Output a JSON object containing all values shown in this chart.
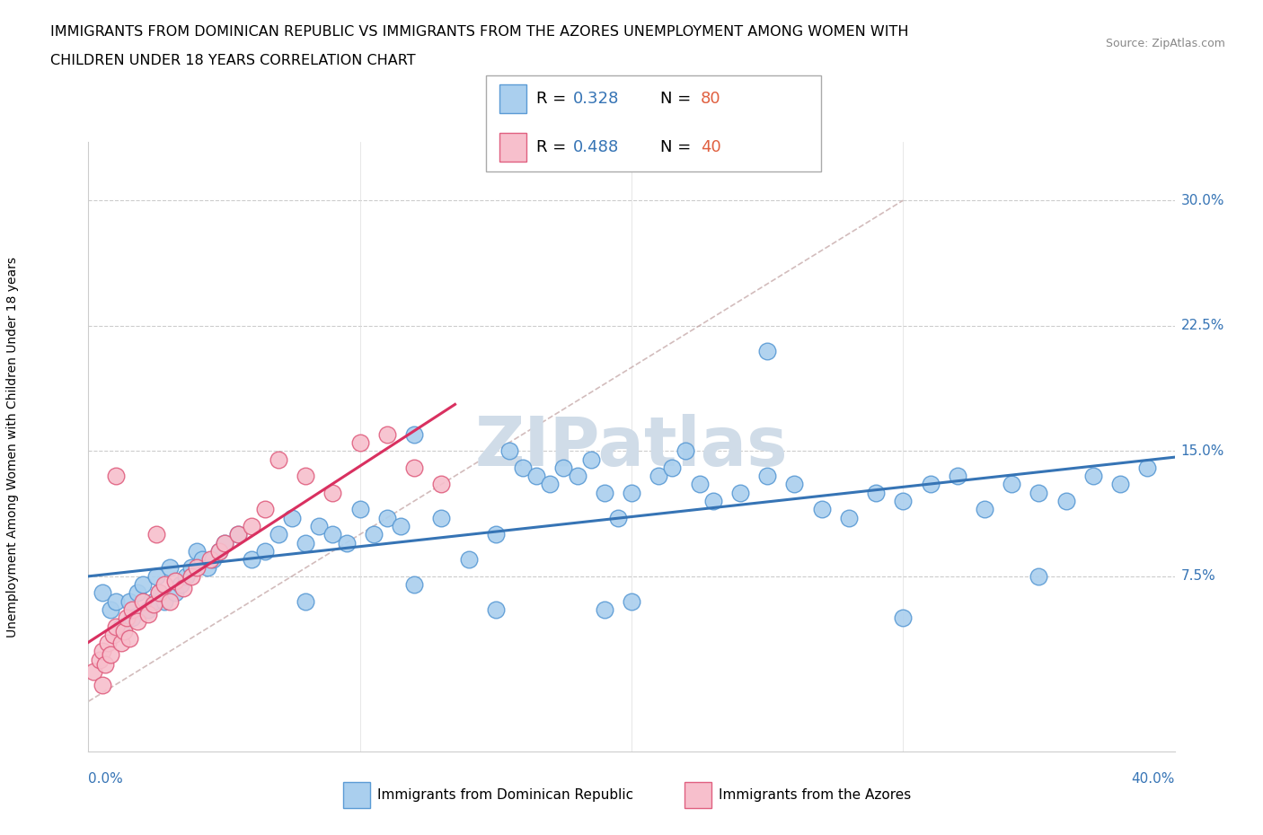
{
  "title_line1": "IMMIGRANTS FROM DOMINICAN REPUBLIC VS IMMIGRANTS FROM THE AZORES UNEMPLOYMENT AMONG WOMEN WITH",
  "title_line2": "CHILDREN UNDER 18 YEARS CORRELATION CHART",
  "source": "Source: ZipAtlas.com",
  "ylabel": "Unemployment Among Women with Children Under 18 years",
  "xlim": [
    0.0,
    0.4
  ],
  "ylim": [
    -0.03,
    0.335
  ],
  "ytick_vals": [
    0.0,
    0.075,
    0.15,
    0.225,
    0.3
  ],
  "ytick_labels": [
    "",
    "7.5%",
    "15.0%",
    "22.5%",
    "30.0%"
  ],
  "xtick_vals": [
    0.0,
    0.1,
    0.2,
    0.3,
    0.4
  ],
  "xtick_labels": [
    "0.0%",
    "",
    "",
    "",
    "40.0%"
  ],
  "blue_color": "#aacfee",
  "blue_edge_color": "#5b9bd5",
  "pink_color": "#f7bfcc",
  "pink_edge_color": "#e06080",
  "blue_line_color": "#3674b5",
  "pink_line_color": "#d93060",
  "diag_line_color": "#c0a0a0",
  "watermark_color": "#d0dce8",
  "legend_text_color": "#3674b5",
  "legend_N_color": "#e06040",
  "blue_label": "Immigrants from Dominican Republic",
  "pink_label": "Immigrants from the Azores",
  "R1": "0.328",
  "N1": "80",
  "R2": "0.488",
  "N2": "40",
  "blue_x": [
    0.005,
    0.008,
    0.01,
    0.012,
    0.015,
    0.016,
    0.018,
    0.02,
    0.022,
    0.024,
    0.025,
    0.026,
    0.028,
    0.03,
    0.032,
    0.034,
    0.036,
    0.038,
    0.04,
    0.042,
    0.044,
    0.046,
    0.048,
    0.05,
    0.055,
    0.06,
    0.065,
    0.07,
    0.075,
    0.08,
    0.085,
    0.09,
    0.095,
    0.1,
    0.105,
    0.11,
    0.115,
    0.12,
    0.13,
    0.14,
    0.15,
    0.155,
    0.16,
    0.165,
    0.17,
    0.175,
    0.18,
    0.185,
    0.19,
    0.195,
    0.2,
    0.21,
    0.215,
    0.22,
    0.225,
    0.23,
    0.24,
    0.25,
    0.26,
    0.27,
    0.28,
    0.29,
    0.3,
    0.31,
    0.32,
    0.33,
    0.34,
    0.35,
    0.36,
    0.37,
    0.38,
    0.39,
    0.15,
    0.2,
    0.25,
    0.3,
    0.35,
    0.19,
    0.12,
    0.08
  ],
  "blue_y": [
    0.065,
    0.055,
    0.06,
    0.045,
    0.06,
    0.05,
    0.065,
    0.07,
    0.055,
    0.06,
    0.075,
    0.065,
    0.06,
    0.08,
    0.065,
    0.07,
    0.075,
    0.08,
    0.09,
    0.085,
    0.08,
    0.085,
    0.09,
    0.095,
    0.1,
    0.085,
    0.09,
    0.1,
    0.11,
    0.095,
    0.105,
    0.1,
    0.095,
    0.115,
    0.1,
    0.11,
    0.105,
    0.16,
    0.11,
    0.085,
    0.1,
    0.15,
    0.14,
    0.135,
    0.13,
    0.14,
    0.135,
    0.145,
    0.125,
    0.11,
    0.125,
    0.135,
    0.14,
    0.15,
    0.13,
    0.12,
    0.125,
    0.135,
    0.13,
    0.115,
    0.11,
    0.125,
    0.12,
    0.13,
    0.135,
    0.115,
    0.13,
    0.125,
    0.12,
    0.135,
    0.13,
    0.14,
    0.055,
    0.06,
    0.21,
    0.05,
    0.075,
    0.055,
    0.07,
    0.06
  ],
  "pink_x": [
    0.002,
    0.004,
    0.005,
    0.006,
    0.007,
    0.008,
    0.009,
    0.01,
    0.012,
    0.013,
    0.014,
    0.015,
    0.016,
    0.018,
    0.02,
    0.022,
    0.024,
    0.026,
    0.028,
    0.03,
    0.032,
    0.035,
    0.038,
    0.04,
    0.045,
    0.048,
    0.05,
    0.055,
    0.06,
    0.065,
    0.07,
    0.08,
    0.09,
    0.1,
    0.11,
    0.12,
    0.13,
    0.025,
    0.01,
    0.005
  ],
  "pink_y": [
    0.018,
    0.025,
    0.03,
    0.022,
    0.035,
    0.028,
    0.04,
    0.045,
    0.035,
    0.042,
    0.05,
    0.038,
    0.055,
    0.048,
    0.06,
    0.052,
    0.058,
    0.065,
    0.07,
    0.06,
    0.072,
    0.068,
    0.075,
    0.08,
    0.085,
    0.09,
    0.095,
    0.1,
    0.105,
    0.115,
    0.145,
    0.135,
    0.125,
    0.155,
    0.16,
    0.14,
    0.13,
    0.1,
    0.135,
    0.01
  ]
}
